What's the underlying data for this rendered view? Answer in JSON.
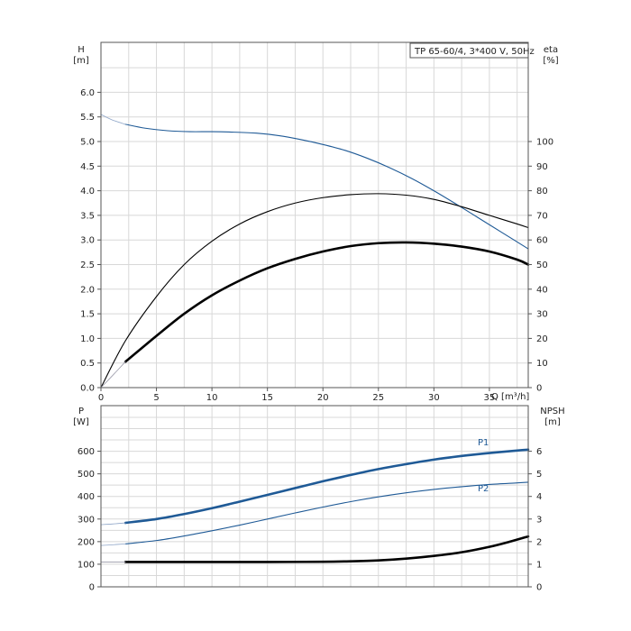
{
  "chart_data": [
    {
      "type": "line",
      "title": "TP 65-60/4, 3*400 V, 50Hz",
      "xlabel": "Q [m³/h]",
      "ylabel_left": [
        "H",
        "[m]"
      ],
      "ylabel_right": [
        "eta",
        "[%]"
      ],
      "xlim": [
        0,
        38.5
      ],
      "ylim_left": [
        0,
        6.0
      ],
      "ylim_right": [
        0,
        100
      ],
      "x_ticks": [
        "0",
        "5",
        "10",
        "15",
        "20",
        "25",
        "30",
        "35"
      ],
      "y_ticks_left": [
        "0.0",
        "0.5",
        "1.0",
        "1.5",
        "2.0",
        "2.5",
        "3.0",
        "3.5",
        "4.0",
        "4.5",
        "5.0",
        "5.5",
        "6.0"
      ],
      "y_ticks_right": [
        "0",
        "10",
        "20",
        "30",
        "40",
        "50",
        "60",
        "70",
        "80",
        "90",
        "100"
      ],
      "grid": true,
      "series": [
        {
          "color": "#1f5a96",
          "axis": "left",
          "x": [
            2.2,
            4,
            6,
            8,
            10,
            12,
            14,
            16,
            18,
            20,
            22,
            24,
            26,
            28,
            30,
            32,
            34,
            36,
            38.5
          ],
          "y": [
            5.35,
            5.27,
            5.22,
            5.2,
            5.2,
            5.19,
            5.17,
            5.12,
            5.04,
            4.94,
            4.82,
            4.66,
            4.47,
            4.25,
            4.0,
            3.73,
            3.45,
            3.17,
            2.82
          ]
        },
        {
          "color": "#1f5a96",
          "axis": "left",
          "dashed_extension": true,
          "x": [
            0,
            1,
            2.2
          ],
          "y": [
            5.55,
            5.44,
            5.35
          ]
        },
        {
          "color": "#000000",
          "axis": "right",
          "x": [
            0,
            2.2,
            5,
            7.5,
            10,
            12.5,
            15,
            17.5,
            20,
            22.5,
            25,
            27.5,
            30,
            32.5,
            35,
            37.5,
            38.5
          ],
          "y": [
            0,
            19,
            37,
            50,
            59.5,
            66.5,
            71.5,
            75,
            77.2,
            78.4,
            78.8,
            78.2,
            76.5,
            73.5,
            70,
            66.5,
            65
          ]
        },
        {
          "color": "#000000",
          "axis": "right",
          "bold": true,
          "x": [
            2.2,
            5,
            7.5,
            10,
            12.5,
            15,
            17.5,
            20,
            22.5,
            25,
            27.5,
            30,
            32.5,
            35,
            37.5,
            38.5
          ],
          "y": [
            10.5,
            21,
            30,
            37.5,
            43.5,
            48.5,
            52.3,
            55.3,
            57.5,
            58.7,
            59,
            58.5,
            57.3,
            55.3,
            52,
            50
          ]
        },
        {
          "color": "#000000",
          "axis": "right",
          "dashed_extension": true,
          "x": [
            0,
            1,
            2.2
          ],
          "y": [
            0,
            4.7,
            10.5
          ]
        }
      ]
    },
    {
      "type": "line",
      "xlabel": "",
      "ylabel_left": [
        "P",
        "[W]"
      ],
      "ylabel_right": [
        "NPSH",
        "[m]"
      ],
      "xlim": [
        0,
        38.5
      ],
      "ylim_left": [
        0,
        700
      ],
      "ylim_right": [
        0,
        7
      ],
      "y_ticks_left": [
        "0",
        "100",
        "200",
        "300",
        "400",
        "500",
        "600"
      ],
      "y_ticks_right": [
        "0",
        "1",
        "2",
        "3",
        "4",
        "5",
        "6"
      ],
      "grid": true,
      "series": [
        {
          "name": "P1",
          "color": "#1f5a96",
          "axis": "left",
          "bold": true,
          "x": [
            2.2,
            5,
            7.5,
            10,
            12.5,
            15,
            17.5,
            20,
            22.5,
            25,
            27.5,
            30,
            32.5,
            35,
            37.5,
            38.5
          ],
          "y": [
            283,
            300,
            322,
            348,
            377,
            407,
            437,
            467,
            495,
            521,
            543,
            563,
            579,
            592,
            603,
            607
          ]
        },
        {
          "color": "#1f5a96",
          "axis": "left",
          "dashed_extension": true,
          "x": [
            0,
            1,
            2.2
          ],
          "y": [
            275,
            278,
            283
          ]
        },
        {
          "name": "P2",
          "color": "#1f5a96",
          "axis": "left",
          "x": [
            2.2,
            5,
            7.5,
            10,
            12.5,
            15,
            17.5,
            20,
            22.5,
            25,
            27.5,
            30,
            32.5,
            35,
            37.5,
            38.5
          ],
          "y": [
            190,
            205,
            225,
            248,
            273,
            300,
            327,
            353,
            377,
            398,
            416,
            431,
            443,
            453,
            460,
            463
          ]
        },
        {
          "color": "#1f5a96",
          "axis": "left",
          "dashed_extension": true,
          "x": [
            0,
            1,
            2.2
          ],
          "y": [
            183,
            186,
            190
          ]
        },
        {
          "color": "#000000",
          "axis": "right",
          "bold": true,
          "x": [
            2.2,
            5,
            10,
            15,
            20,
            22.5,
            25,
            27.5,
            30,
            32.5,
            35,
            37,
            38.5
          ],
          "y": [
            1.1,
            1.1,
            1.1,
            1.1,
            1.11,
            1.13,
            1.17,
            1.25,
            1.37,
            1.53,
            1.77,
            2.02,
            2.23
          ]
        },
        {
          "color": "#000000",
          "axis": "right",
          "dashed_extension": true,
          "x": [
            0,
            2.2
          ],
          "y": [
            1.1,
            1.1
          ]
        }
      ]
    }
  ]
}
